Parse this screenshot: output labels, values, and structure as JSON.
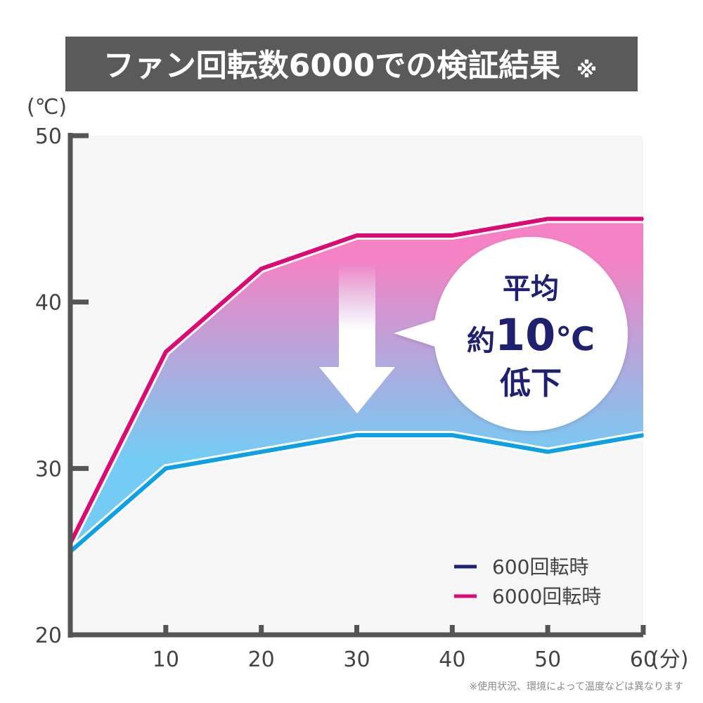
{
  "title": "ファン回転数6000での検証結果",
  "title_mark": "※",
  "colors": {
    "title_bg": "#5a5a5b",
    "plot_bg": "#f6f6f6",
    "axis": "#555555",
    "series_600_line": "#0ea0e4",
    "series_600_legend": "#1f2170",
    "series_6000": "#dc0a74",
    "band_top": "#f482c4",
    "band_bottom": "#74ccf4",
    "callout_text": "#1f2170"
  },
  "footnote": "※使用状況、環境によって温度などは異なります",
  "callout": {
    "line1": "平均",
    "prefix": "約",
    "value": "10",
    "unit": "℃",
    "line3": "低下"
  },
  "icons": [
    "down-arrow-icon",
    "speech-bubble-icon"
  ],
  "chart_data": {
    "type": "line",
    "x": [
      0,
      10,
      20,
      30,
      40,
      50,
      60
    ],
    "series": [
      {
        "name": "600回転時",
        "values": [
          25,
          30,
          31,
          32,
          32,
          31,
          32
        ]
      },
      {
        "name": "6000回転時",
        "values": [
          25.5,
          37,
          42,
          44,
          44,
          45,
          45
        ]
      }
    ],
    "x_ticks": [
      "10",
      "20",
      "30",
      "40",
      "50",
      "60"
    ],
    "x_unit": "(分)",
    "y_ticks": [
      "20",
      "30",
      "40",
      "50"
    ],
    "y_unit": "(℃)",
    "xlim": [
      0,
      60
    ],
    "ylim": [
      20,
      50
    ],
    "grid": false,
    "legend_position": "bottom-right"
  }
}
